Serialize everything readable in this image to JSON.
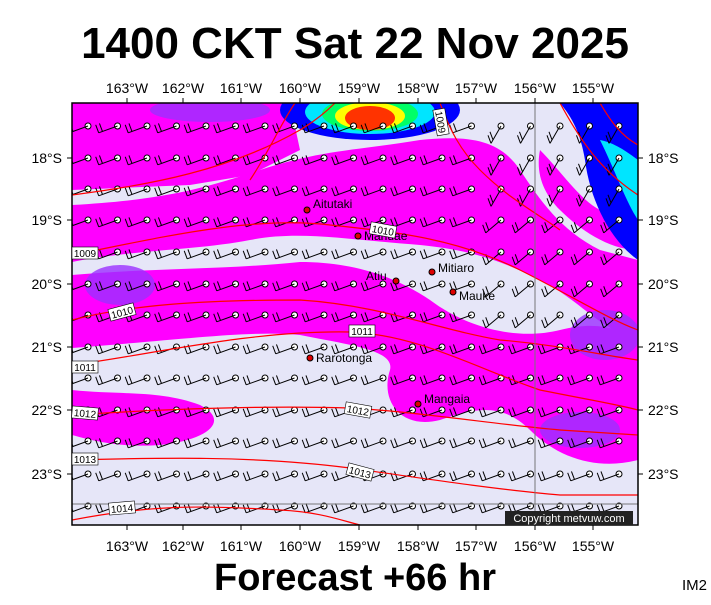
{
  "title": "1400 CKT Sat 22 Nov 2025",
  "footer": "Forecast +66 hr",
  "corner": "IM2",
  "copyright": "Copyright metvuw.com",
  "lon_labels": [
    "163°W",
    "162°W",
    "161°W",
    "160°W",
    "159°W",
    "158°W",
    "157°W",
    "156°W",
    "155°W"
  ],
  "lat_labels": [
    "18°S",
    "19°S",
    "20°S",
    "21°S",
    "22°S",
    "23°S"
  ],
  "places": [
    "Aitutaki",
    "Manuae",
    "Atiu",
    "Mitiaro",
    "Mauke",
    "Rarotonga",
    "Mangaia"
  ],
  "isobar_labels": [
    "1009",
    "1010",
    "1009",
    "1010",
    "1011",
    "1011",
    "1012",
    "1012",
    "1013",
    "1013",
    "1014"
  ]
}
